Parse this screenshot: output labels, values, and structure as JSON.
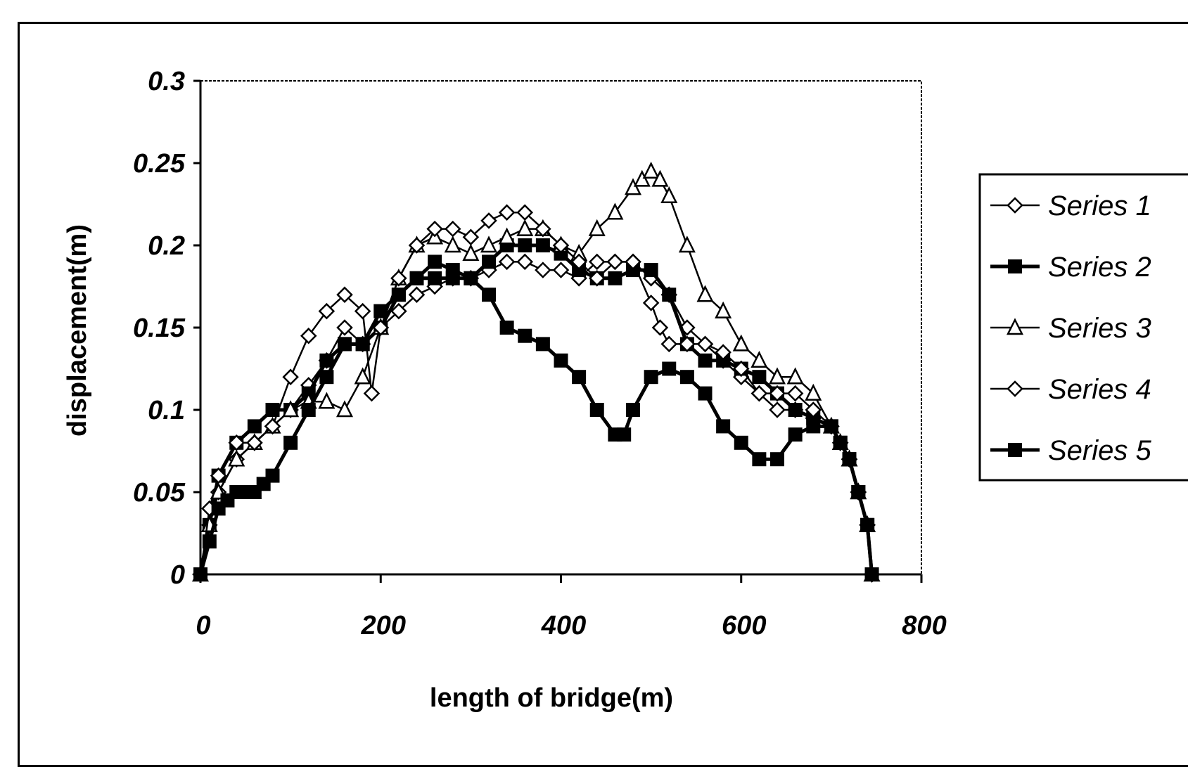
{
  "chart_data": {
    "type": "line",
    "title": "",
    "xlabel": "length of bridge(m)",
    "ylabel": "displacement(m)",
    "xlim": [
      0,
      800
    ],
    "ylim": [
      0,
      0.3
    ],
    "xticks": [
      0,
      200,
      400,
      600,
      800
    ],
    "yticks": [
      0,
      0.05,
      0.1,
      0.15,
      0.2,
      0.25,
      0.3
    ],
    "ytick_labels": [
      "0",
      "0.05",
      "0.1",
      "0.15",
      "0.2",
      "0.25",
      "0.3"
    ],
    "xtick_labels": [
      "0",
      "200",
      "400",
      "600",
      "800"
    ],
    "grid": false,
    "legend_position": "right",
    "series": [
      {
        "name": "Series 1",
        "marker": "diamond-open",
        "x": [
          0,
          10,
          20,
          40,
          60,
          80,
          100,
          120,
          140,
          160,
          180,
          200,
          220,
          240,
          260,
          280,
          300,
          320,
          340,
          360,
          380,
          400,
          420,
          440,
          460,
          480,
          500,
          520,
          540,
          560,
          580,
          600,
          620,
          640,
          660,
          680,
          700,
          710,
          720,
          730,
          740,
          745
        ],
        "y": [
          0,
          0.03,
          0.05,
          0.07,
          0.08,
          0.09,
          0.1,
          0.115,
          0.13,
          0.15,
          0.14,
          0.15,
          0.16,
          0.17,
          0.175,
          0.18,
          0.18,
          0.185,
          0.19,
          0.19,
          0.185,
          0.185,
          0.18,
          0.19,
          0.19,
          0.19,
          0.18,
          0.17,
          0.15,
          0.14,
          0.13,
          0.12,
          0.11,
          0.1,
          0.1,
          0.095,
          0.09,
          0.08,
          0.07,
          0.05,
          0.03,
          0
        ]
      },
      {
        "name": "Series 2",
        "marker": "square-filled",
        "x": [
          0,
          10,
          20,
          40,
          60,
          80,
          100,
          120,
          140,
          160,
          180,
          200,
          220,
          240,
          260,
          280,
          300,
          320,
          340,
          360,
          380,
          400,
          420,
          440,
          460,
          480,
          500,
          520,
          540,
          560,
          580,
          600,
          620,
          640,
          660,
          680,
          700,
          710,
          720,
          730,
          740,
          745
        ],
        "y": [
          0,
          0.03,
          0.06,
          0.08,
          0.09,
          0.1,
          0.1,
          0.11,
          0.13,
          0.14,
          0.14,
          0.15,
          0.17,
          0.18,
          0.19,
          0.185,
          0.18,
          0.19,
          0.2,
          0.2,
          0.2,
          0.195,
          0.185,
          0.18,
          0.18,
          0.185,
          0.185,
          0.17,
          0.14,
          0.13,
          0.13,
          0.125,
          0.12,
          0.11,
          0.1,
          0.095,
          0.09,
          0.08,
          0.07,
          0.05,
          0.03,
          0
        ]
      },
      {
        "name": "Series 3",
        "marker": "triangle-open",
        "x": [
          0,
          10,
          20,
          40,
          60,
          80,
          100,
          120,
          140,
          160,
          180,
          200,
          220,
          240,
          260,
          280,
          300,
          320,
          340,
          360,
          380,
          400,
          420,
          440,
          460,
          480,
          490,
          500,
          510,
          520,
          540,
          560,
          580,
          600,
          620,
          640,
          660,
          680,
          700,
          710,
          720,
          730,
          740,
          745
        ],
        "y": [
          0,
          0.03,
          0.05,
          0.07,
          0.08,
          0.09,
          0.1,
          0.105,
          0.105,
          0.1,
          0.12,
          0.15,
          0.18,
          0.2,
          0.205,
          0.2,
          0.195,
          0.2,
          0.205,
          0.21,
          0.21,
          0.2,
          0.195,
          0.21,
          0.22,
          0.235,
          0.24,
          0.245,
          0.24,
          0.23,
          0.2,
          0.17,
          0.16,
          0.14,
          0.13,
          0.12,
          0.12,
          0.11,
          0.09,
          0.08,
          0.07,
          0.05,
          0.03,
          0
        ]
      },
      {
        "name": "Series 4",
        "marker": "diamond-open",
        "x": [
          0,
          10,
          20,
          40,
          60,
          80,
          100,
          120,
          140,
          160,
          180,
          190,
          200,
          220,
          240,
          260,
          280,
          300,
          320,
          340,
          360,
          380,
          400,
          420,
          440,
          460,
          480,
          500,
          510,
          520,
          540,
          560,
          580,
          600,
          620,
          640,
          660,
          680,
          700,
          710,
          720,
          730,
          740,
          745
        ],
        "y": [
          0,
          0.04,
          0.06,
          0.08,
          0.08,
          0.09,
          0.12,
          0.145,
          0.16,
          0.17,
          0.16,
          0.11,
          0.15,
          0.18,
          0.2,
          0.21,
          0.21,
          0.205,
          0.215,
          0.22,
          0.22,
          0.21,
          0.2,
          0.19,
          0.18,
          0.19,
          0.19,
          0.165,
          0.15,
          0.14,
          0.14,
          0.14,
          0.135,
          0.125,
          0.11,
          0.11,
          0.11,
          0.1,
          0.09,
          0.08,
          0.07,
          0.05,
          0.03,
          0
        ]
      },
      {
        "name": "Series 5",
        "marker": "square-filled",
        "x": [
          0,
          10,
          20,
          30,
          40,
          50,
          60,
          70,
          80,
          100,
          120,
          140,
          160,
          180,
          200,
          220,
          240,
          260,
          280,
          300,
          320,
          340,
          360,
          380,
          400,
          420,
          440,
          460,
          470,
          480,
          500,
          520,
          540,
          560,
          580,
          600,
          620,
          640,
          660,
          680,
          700,
          710,
          720,
          730,
          740,
          745
        ],
        "y": [
          0,
          0.02,
          0.04,
          0.045,
          0.05,
          0.05,
          0.05,
          0.055,
          0.06,
          0.08,
          0.1,
          0.12,
          0.14,
          0.14,
          0.16,
          0.17,
          0.18,
          0.18,
          0.18,
          0.18,
          0.17,
          0.15,
          0.145,
          0.14,
          0.13,
          0.12,
          0.1,
          0.085,
          0.085,
          0.1,
          0.12,
          0.125,
          0.12,
          0.11,
          0.09,
          0.08,
          0.07,
          0.07,
          0.085,
          0.09,
          0.09,
          0.08,
          0.07,
          0.05,
          0.03,
          0
        ]
      }
    ]
  }
}
